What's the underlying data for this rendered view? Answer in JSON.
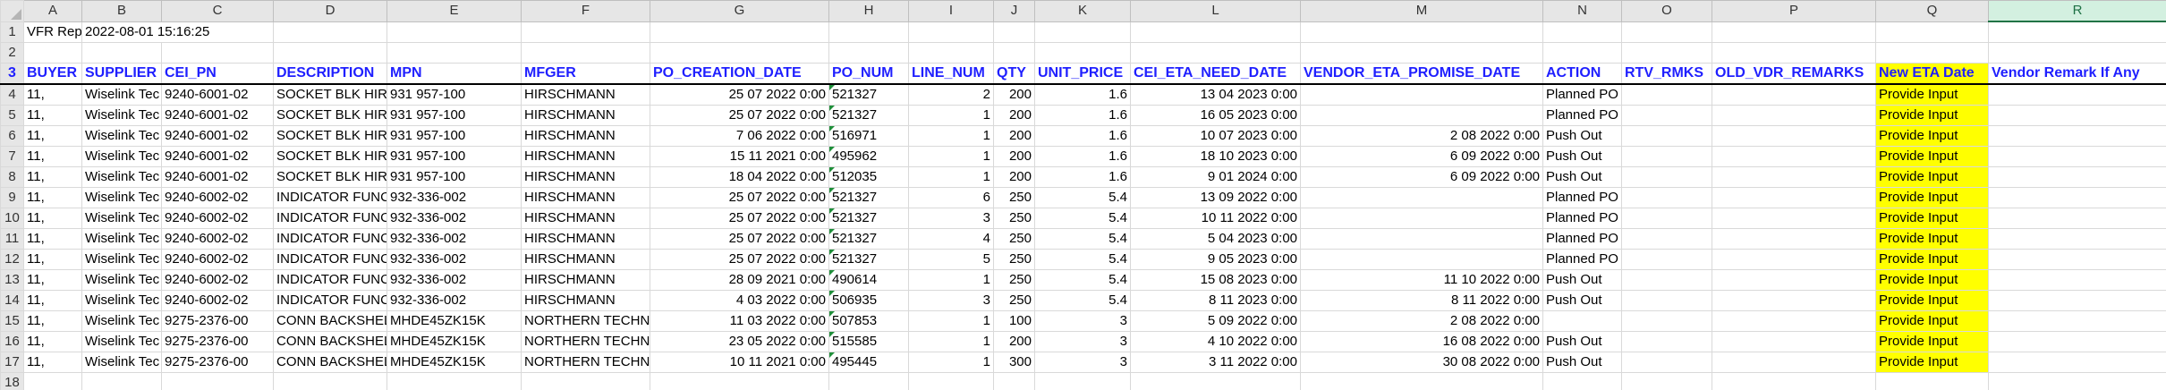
{
  "columns": [
    "A",
    "B",
    "C",
    "D",
    "E",
    "F",
    "G",
    "H",
    "I",
    "J",
    "K",
    "L",
    "M",
    "N",
    "O",
    "P",
    "Q",
    "R"
  ],
  "selected_column": "R",
  "report": {
    "title": "VFR Repc",
    "timestamp": "2022-08-01 15:16:25"
  },
  "headers": [
    "BUYER",
    "SUPPLIER",
    "CEI_PN",
    "DESCRIPTION",
    "MPN",
    "MFGER",
    "PO_CREATION_DATE",
    "PO_NUM",
    "LINE_NUM",
    "QTY",
    "UNIT_PRICE",
    "CEI_ETA_NEED_DATE",
    "VENDOR_ETA_PROMISE_DATE",
    "ACTION",
    "RTV_RMKS",
    "OLD_VDR_REMARKS",
    "New ETA Date",
    "Vendor Remark If Any"
  ],
  "rows": [
    {
      "n": "4",
      "cells": [
        "11,",
        "Wiselink Tec",
        "9240-6001-02",
        "SOCKET BLK HIRS(",
        "931 957-100",
        "HIRSCHMANN",
        "25 07 2022 0:00",
        "521327",
        "2",
        "200",
        "1.6",
        "13 04 2023 0:00",
        "",
        "Planned PO",
        "",
        "",
        "Provide Input",
        ""
      ]
    },
    {
      "n": "5",
      "cells": [
        "11,",
        "Wiselink Tec",
        "9240-6001-02",
        "SOCKET BLK HIRS(",
        "931 957-100",
        "HIRSCHMANN",
        "25 07 2022 0:00",
        "521327",
        "1",
        "200",
        "1.6",
        "16 05 2023 0:00",
        "",
        "Planned PO",
        "",
        "",
        "Provide Input",
        ""
      ]
    },
    {
      "n": "6",
      "cells": [
        "11,",
        "Wiselink Tec",
        "9240-6001-02",
        "SOCKET BLK HIRS(",
        "931 957-100",
        "HIRSCHMANN",
        "7 06 2022 0:00",
        "516971",
        "1",
        "200",
        "1.6",
        "10 07 2023 0:00",
        "2 08 2022 0:00",
        "Push Out",
        "",
        "",
        "Provide Input",
        ""
      ]
    },
    {
      "n": "7",
      "cells": [
        "11,",
        "Wiselink Tec",
        "9240-6001-02",
        "SOCKET BLK HIRS(",
        "931 957-100",
        "HIRSCHMANN",
        "15 11 2021 0:00",
        "495962",
        "1",
        "200",
        "1.6",
        "18 10 2023 0:00",
        "6 09 2022 0:00",
        "Push Out",
        "",
        "",
        "Provide Input",
        ""
      ]
    },
    {
      "n": "8",
      "cells": [
        "11,",
        "Wiselink Tec",
        "9240-6001-02",
        "SOCKET BLK HIRS(",
        "931 957-100",
        "HIRSCHMANN",
        "18 04 2022 0:00",
        "512035",
        "1",
        "200",
        "1.6",
        "9 01 2024 0:00",
        "6 09 2022 0:00",
        "Push Out",
        "",
        "",
        "Provide Input",
        ""
      ]
    },
    {
      "n": "9",
      "cells": [
        "11,",
        "Wiselink Tec",
        "9240-6002-02",
        "INDICATOR FUNC",
        "932-336-002",
        "HIRSCHMANN",
        "25 07 2022 0:00",
        "521327",
        "6",
        "250",
        "5.4",
        "13 09 2022 0:00",
        "",
        "Planned PO",
        "",
        "",
        "Provide Input",
        ""
      ]
    },
    {
      "n": "10",
      "cells": [
        "11,",
        "Wiselink Tec",
        "9240-6002-02",
        "INDICATOR FUNC",
        "932-336-002",
        "HIRSCHMANN",
        "25 07 2022 0:00",
        "521327",
        "3",
        "250",
        "5.4",
        "10 11 2022 0:00",
        "",
        "Planned PO",
        "",
        "",
        "Provide Input",
        ""
      ]
    },
    {
      "n": "11",
      "cells": [
        "11,",
        "Wiselink Tec",
        "9240-6002-02",
        "INDICATOR FUNC",
        "932-336-002",
        "HIRSCHMANN",
        "25 07 2022 0:00",
        "521327",
        "4",
        "250",
        "5.4",
        "5 04 2023 0:00",
        "",
        "Planned PO",
        "",
        "",
        "Provide Input",
        ""
      ]
    },
    {
      "n": "12",
      "cells": [
        "11,",
        "Wiselink Tec",
        "9240-6002-02",
        "INDICATOR FUNC",
        "932-336-002",
        "HIRSCHMANN",
        "25 07 2022 0:00",
        "521327",
        "5",
        "250",
        "5.4",
        "9 05 2023 0:00",
        "",
        "Planned PO",
        "",
        "",
        "Provide Input",
        ""
      ]
    },
    {
      "n": "13",
      "cells": [
        "11,",
        "Wiselink Tec",
        "9240-6002-02",
        "INDICATOR FUNC",
        "932-336-002",
        "HIRSCHMANN",
        "28 09 2021 0:00",
        "490614",
        "1",
        "250",
        "5.4",
        "15 08 2023 0:00",
        "11 10 2022 0:00",
        "Push Out",
        "",
        "",
        "Provide Input",
        ""
      ]
    },
    {
      "n": "14",
      "cells": [
        "11,",
        "Wiselink Tec",
        "9240-6002-02",
        "INDICATOR FUNC",
        "932-336-002",
        "HIRSCHMANN",
        "4 03 2022 0:00",
        "506935",
        "3",
        "250",
        "5.4",
        "8 11 2023 0:00",
        "8 11 2022 0:00",
        "Push Out",
        "",
        "",
        "Provide Input",
        ""
      ]
    },
    {
      "n": "15",
      "cells": [
        "11,",
        "Wiselink Tec",
        "9275-2376-00",
        "CONN BACKSHELL",
        "MHDE45ZK15K",
        "NORTHERN TECHNO",
        "11 03 2022 0:00",
        "507853",
        "1",
        "100",
        "3",
        "5 09 2022 0:00",
        "2 08 2022 0:00",
        "",
        "",
        "",
        "Provide Input",
        ""
      ]
    },
    {
      "n": "16",
      "cells": [
        "11,",
        "Wiselink Tec",
        "9275-2376-00",
        "CONN BACKSHELL",
        "MHDE45ZK15K",
        "NORTHERN TECHNO",
        "23 05 2022 0:00",
        "515585",
        "1",
        "200",
        "3",
        "4 10 2022 0:00",
        "16 08 2022 0:00",
        "Push Out",
        "",
        "",
        "Provide Input",
        ""
      ]
    },
    {
      "n": "17",
      "cells": [
        "11,",
        "Wiselink Tec",
        "9275-2376-00",
        "CONN BACKSHELL",
        "MHDE45ZK15K",
        "NORTHERN TECHNO",
        "10 11 2021 0:00",
        "495445",
        "1",
        "300",
        "3",
        "3 11 2022 0:00",
        "30 08 2022 0:00",
        "Push Out",
        "",
        "",
        "Provide Input",
        ""
      ]
    },
    {
      "n": "18",
      "cells": [
        "",
        "",
        "",
        "",
        "",
        "",
        "",
        "",
        "",
        "",
        "",
        "",
        "",
        "",
        "",
        "",
        "",
        ""
      ]
    }
  ]
}
